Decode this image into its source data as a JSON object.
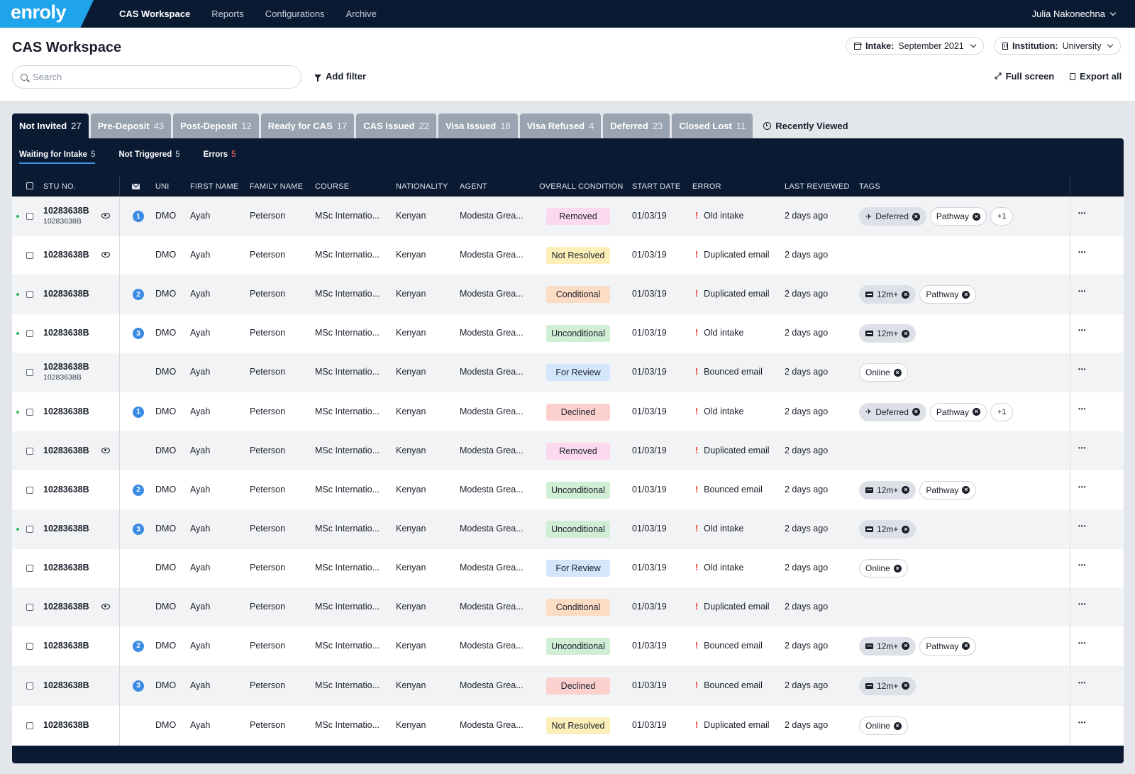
{
  "nav": {
    "logo": "enroly",
    "items": [
      "CAS Workspace",
      "Reports",
      "Configurations",
      "Archive"
    ],
    "active": 0,
    "user": "Julia Nakonechna"
  },
  "header": {
    "title": "CAS Workspace",
    "intake_label": "Intake:",
    "intake_value": "September 2021",
    "institution_label": "Institution:",
    "institution_value": "University",
    "search_placeholder": "Search",
    "add_filter": "Add filter",
    "full_screen": "Full screen",
    "export_all": "Export all"
  },
  "tabs": [
    {
      "label": "Not Invited",
      "count": "27"
    },
    {
      "label": "Pre-Deposit",
      "count": "43"
    },
    {
      "label": "Post-Deposit",
      "count": "12"
    },
    {
      "label": "Ready for CAS",
      "count": "17"
    },
    {
      "label": "CAS Issued",
      "count": "22"
    },
    {
      "label": "Visa Issued",
      "count": "18"
    },
    {
      "label": "Visa Refused",
      "count": "4"
    },
    {
      "label": "Deferred",
      "count": "23"
    },
    {
      "label": "Closed Lost",
      "count": "11"
    }
  ],
  "recently_viewed": "Recently Viewed",
  "subtabs": [
    {
      "label": "Waiting for Intake",
      "count": "5",
      "error": false
    },
    {
      "label": "Not Triggered",
      "count": "5",
      "error": false
    },
    {
      "label": "Errors",
      "count": "5",
      "error": true
    }
  ],
  "columns": [
    "STU NO.",
    "UNI",
    "FIRST NAME",
    "FAMILY NAME",
    "COURSE",
    "NATIONALITY",
    "AGENT",
    "OVERALL CONDITION",
    "START DATE",
    "ERROR",
    "LAST REVIEWED",
    "TAGS"
  ],
  "condition_colors": {
    "Removed": {
      "bg": "#fbd9ef",
      "fg": "#1a1f2b"
    },
    "Not Resolved": {
      "bg": "#fcefb8",
      "fg": "#1a1f2b"
    },
    "Conditional": {
      "bg": "#fddcc4",
      "fg": "#1a1f2b"
    },
    "Unconditional": {
      "bg": "#cfeed3",
      "fg": "#1a1f2b"
    },
    "For Review": {
      "bg": "#d3e6fb",
      "fg": "#1a1f2b"
    },
    "Declined": {
      "bg": "#fbd0cd",
      "fg": "#1a1f2b"
    }
  },
  "rows": [
    {
      "dot": true,
      "stu": "10283638B",
      "stu_sub": "10283638B",
      "eye": true,
      "badge": "1",
      "uni": "DMO",
      "first": "Ayah",
      "family": "Peterson",
      "course": "MSc Internatio...",
      "nationality": "Kenyan",
      "agent": "Modesta Grea...",
      "condition": "Removed",
      "start": "01/03/19",
      "error": "Old intake",
      "reviewed": "2 days ago",
      "tags": [
        {
          "label": "Deferred",
          "icon": "plane",
          "filled": true
        },
        {
          "label": "Pathway",
          "icon": "",
          "filled": false
        },
        {
          "label": "+1",
          "icon": "more",
          "filled": false
        }
      ]
    },
    {
      "dot": false,
      "stu": "10283638B",
      "stu_sub": "",
      "eye": true,
      "badge": "",
      "uni": "DMO",
      "first": "Ayah",
      "family": "Peterson",
      "course": "MSc Internatio...",
      "nationality": "Kenyan",
      "agent": "Modesta Grea...",
      "condition": "Not Resolved",
      "start": "01/03/19",
      "error": "Duplicated email",
      "reviewed": "2 days ago",
      "tags": []
    },
    {
      "dot": true,
      "stu": "10283638B",
      "stu_sub": "",
      "eye": false,
      "badge": "2",
      "uni": "DMO",
      "first": "Ayah",
      "family": "Peterson",
      "course": "MSc Internatio...",
      "nationality": "Kenyan",
      "agent": "Modesta Grea...",
      "condition": "Conditional",
      "start": "01/03/19",
      "error": "Duplicated email",
      "reviewed": "2 days ago",
      "tags": [
        {
          "label": "12m+",
          "icon": "uk",
          "filled": true
        },
        {
          "label": "Pathway",
          "icon": "",
          "filled": false
        }
      ]
    },
    {
      "dot": true,
      "stu": "10283638B",
      "stu_sub": "",
      "eye": false,
      "badge": "3",
      "uni": "DMO",
      "first": "Ayah",
      "family": "Peterson",
      "course": "MSc Internatio...",
      "nationality": "Kenyan",
      "agent": "Modesta Grea...",
      "condition": "Unconditional",
      "start": "01/03/19",
      "error": "Old intake",
      "reviewed": "2 days ago",
      "tags": [
        {
          "label": "12m+",
          "icon": "uk",
          "filled": true
        }
      ]
    },
    {
      "dot": false,
      "stu": "10283638B",
      "stu_sub": "10283638B",
      "eye": false,
      "badge": "",
      "uni": "DMO",
      "first": "Ayah",
      "family": "Peterson",
      "course": "MSc Internatio...",
      "nationality": "Kenyan",
      "agent": "Modesta Grea...",
      "condition": "For Review",
      "start": "01/03/19",
      "error": "Bounced email",
      "reviewed": "2 days ago",
      "tags": [
        {
          "label": "Online",
          "icon": "",
          "filled": false
        }
      ]
    },
    {
      "dot": true,
      "stu": "10283638B",
      "stu_sub": "",
      "eye": false,
      "badge": "1",
      "uni": "DMO",
      "first": "Ayah",
      "family": "Peterson",
      "course": "MSc Internatio...",
      "nationality": "Kenyan",
      "agent": "Modesta Grea...",
      "condition": "Declined",
      "start": "01/03/19",
      "error": "Old intake",
      "reviewed": "2 days ago",
      "tags": [
        {
          "label": "Deferred",
          "icon": "plane",
          "filled": true
        },
        {
          "label": "Pathway",
          "icon": "",
          "filled": false
        },
        {
          "label": "+1",
          "icon": "more",
          "filled": false
        }
      ]
    },
    {
      "dot": false,
      "stu": "10283638B",
      "stu_sub": "",
      "eye": true,
      "badge": "",
      "uni": "DMO",
      "first": "Ayah",
      "family": "Peterson",
      "course": "MSc Internatio...",
      "nationality": "Kenyan",
      "agent": "Modesta Grea...",
      "condition": "Removed",
      "start": "01/03/19",
      "error": "Duplicated email",
      "reviewed": "2 days ago",
      "tags": []
    },
    {
      "dot": false,
      "stu": "10283638B",
      "stu_sub": "",
      "eye": false,
      "badge": "2",
      "uni": "DMO",
      "first": "Ayah",
      "family": "Peterson",
      "course": "MSc Internatio...",
      "nationality": "Kenyan",
      "agent": "Modesta Grea...",
      "condition": "Unconditional",
      "start": "01/03/19",
      "error": "Bounced email",
      "reviewed": "2 days ago",
      "tags": [
        {
          "label": "12m+",
          "icon": "uk",
          "filled": true
        },
        {
          "label": "Pathway",
          "icon": "",
          "filled": false
        }
      ]
    },
    {
      "dot": true,
      "stu": "10283638B",
      "stu_sub": "",
      "eye": false,
      "badge": "3",
      "uni": "DMO",
      "first": "Ayah",
      "family": "Peterson",
      "course": "MSc Internatio...",
      "nationality": "Kenyan",
      "agent": "Modesta Grea...",
      "condition": "Unconditional",
      "start": "01/03/19",
      "error": "Old intake",
      "reviewed": "2 days ago",
      "tags": [
        {
          "label": "12m+",
          "icon": "uk",
          "filled": true
        }
      ]
    },
    {
      "dot": false,
      "stu": "10283638B",
      "stu_sub": "",
      "eye": false,
      "badge": "",
      "uni": "DMO",
      "first": "Ayah",
      "family": "Peterson",
      "course": "MSc Internatio...",
      "nationality": "Kenyan",
      "agent": "Modesta Grea...",
      "condition": "For Review",
      "start": "01/03/19",
      "error": "Old intake",
      "reviewed": "2 days ago",
      "tags": [
        {
          "label": "Online",
          "icon": "",
          "filled": false
        }
      ]
    },
    {
      "dot": false,
      "stu": "10283638B",
      "stu_sub": "",
      "eye": true,
      "badge": "",
      "uni": "DMO",
      "first": "Ayah",
      "family": "Peterson",
      "course": "MSc Internatio...",
      "nationality": "Kenyan",
      "agent": "Modesta Grea...",
      "condition": "Conditional",
      "start": "01/03/19",
      "error": "Duplicated email",
      "reviewed": "2 days ago",
      "tags": []
    },
    {
      "dot": false,
      "stu": "10283638B",
      "stu_sub": "",
      "eye": false,
      "badge": "2",
      "uni": "DMO",
      "first": "Ayah",
      "family": "Peterson",
      "course": "MSc Internatio...",
      "nationality": "Kenyan",
      "agent": "Modesta Grea...",
      "condition": "Unconditional",
      "start": "01/03/19",
      "error": "Bounced email",
      "reviewed": "2 days ago",
      "tags": [
        {
          "label": "12m+",
          "icon": "uk",
          "filled": true
        },
        {
          "label": "Pathway",
          "icon": "",
          "filled": false
        }
      ]
    },
    {
      "dot": false,
      "stu": "10283638B",
      "stu_sub": "",
      "eye": false,
      "badge": "3",
      "uni": "DMO",
      "first": "Ayah",
      "family": "Peterson",
      "course": "MSc Internatio...",
      "nationality": "Kenyan",
      "agent": "Modesta Grea...",
      "condition": "Declined",
      "start": "01/03/19",
      "error": "Bounced email",
      "reviewed": "2 days ago",
      "tags": [
        {
          "label": "12m+",
          "icon": "uk",
          "filled": true
        }
      ]
    },
    {
      "dot": false,
      "stu": "10283638B",
      "stu_sub": "",
      "eye": false,
      "badge": "",
      "uni": "DMO",
      "first": "Ayah",
      "family": "Peterson",
      "course": "MSc Internatio...",
      "nationality": "Kenyan",
      "agent": "Modesta Grea...",
      "condition": "Not Resolved",
      "start": "01/03/19",
      "error": "Duplicated email",
      "reviewed": "2 days ago",
      "tags": [
        {
          "label": "Online",
          "icon": "",
          "filled": false
        }
      ]
    }
  ]
}
